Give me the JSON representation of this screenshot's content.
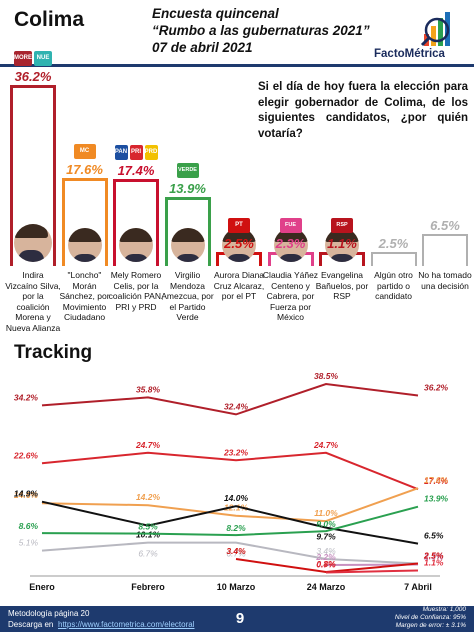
{
  "header": {
    "state": "Colima",
    "line1": "Encuesta quincenal",
    "line2": "“Rumbo a las gubernaturas 2021”",
    "line3": "07 de abril 2021",
    "brand": "FactoMétrica"
  },
  "question": "Si el día de hoy fuera la elección para elegir gobernador de Colima, de los siguientes candidatos, ¿por quién votaría?",
  "chart_data": [
    {
      "type": "bar",
      "categories": [
        "Indira Vizcaíno Silva, por la coalición Morena y Nueva Alianza",
        "\"Loncho\" Morán Sánchez, por Movimiento Ciudadano",
        "Mely Romero Celis, por la coalición PAN, PRI y PRD",
        "Virgilio Mendoza Amezcua, por el Partido Verde",
        "Aurora Diana Cruz Alcaraz, por el PT",
        "Claudia Yáñez Centeno y Cabrera, por Fuerza por México",
        "Evangelina Bañuelos, por RSP",
        "Algún otro partido o candidato",
        "No ha tomado una decisión"
      ],
      "values": [
        36.2,
        17.6,
        17.4,
        13.9,
        2.5,
        2.3,
        1.1,
        2.5,
        6.5
      ],
      "value_labels": [
        "36.2%",
        "17.6%",
        "17.4%",
        "13.9%",
        "2.5%",
        "2.3%",
        "1.1%",
        "2.5%",
        "6.5%"
      ],
      "colors": [
        "#b01f2a",
        "#f08a24",
        "#c8102e",
        "#3aa04a",
        "#d01010",
        "#e0408a",
        "#b8141e",
        "#b0b0b0",
        "#b0b0b0"
      ],
      "party_logos": [
        [
          "MORENA",
          "NUEVA ALIANZA"
        ],
        [
          "MC"
        ],
        [
          "PAN",
          "PRI",
          "PRD"
        ],
        [
          "VERDE"
        ],
        [
          "PT"
        ],
        [
          "FUERZA X MÉXICO"
        ],
        [
          "RSP"
        ],
        [],
        []
      ],
      "logo_colors": [
        [
          "#a8252f",
          "#2fb3b0"
        ],
        [
          "#f08a24"
        ],
        [
          "#1c4fa1",
          "#d8262e",
          "#f2c100"
        ],
        [
          "#3aa04a"
        ],
        [
          "#d01010"
        ],
        [
          "#e0408a"
        ],
        [
          "#b8141e"
        ],
        [],
        []
      ],
      "has_photo": [
        true,
        true,
        true,
        true,
        true,
        true,
        true,
        false,
        false
      ]
    },
    {
      "type": "line",
      "title": "Tracking",
      "x": [
        "Enero",
        "Febrero",
        "10 Marzo",
        "24 Marzo",
        "7 Abril"
      ],
      "ylim": [
        0,
        40
      ],
      "series": [
        {
          "color": "#b01f2a",
          "values": [
            34.2,
            35.8,
            32.4,
            38.5,
            36.2
          ],
          "labels": [
            "34.2%",
            "35.8%",
            "32.4%",
            "38.5%",
            "36.2%"
          ]
        },
        {
          "color": "#d8262e",
          "values": [
            22.6,
            24.7,
            23.2,
            24.7,
            17.4
          ],
          "labels": [
            "22.6%",
            "24.7%",
            "23.2%",
            "24.7%",
            "17.4%"
          ]
        },
        {
          "color": "#f0a050",
          "values": [
            14.6,
            14.2,
            12.1,
            11.0,
            17.6
          ],
          "labels": [
            "14.6%",
            "14.2%",
            "12.1%",
            "11.0%",
            "17.6%"
          ]
        },
        {
          "color": "#111111",
          "values": [
            14.9,
            10.1,
            14.0,
            9.7,
            6.5
          ],
          "labels": [
            "14.9%",
            "10.1%",
            "14.0%",
            "9.7%",
            "6.5%"
          ]
        },
        {
          "color": "#2aa050",
          "values": [
            8.6,
            8.5,
            8.2,
            9.0,
            13.9
          ],
          "labels": [
            "8.6%",
            "8.5%",
            "8.2%",
            "9.0%",
            "13.9%"
          ]
        },
        {
          "color": "#b8b8c0",
          "values": [
            5.1,
            6.7,
            6.7,
            3.4,
            2.5
          ],
          "labels": [
            "5.1%",
            "6.7%",
            "6.7%",
            "3.4%",
            "2.5%"
          ]
        },
        {
          "color": "#c890c0",
          "values": [
            null,
            null,
            null,
            2.2,
            2.3
          ],
          "labels": [
            "",
            "",
            "",
            "2.2%",
            "2.3%"
          ]
        },
        {
          "color": "#d01010",
          "values": [
            null,
            null,
            3.4,
            0.8,
            2.5
          ],
          "labels": [
            "",
            "",
            "3.4%",
            "0.8%",
            "2.5%"
          ]
        },
        {
          "color": "#e03040",
          "values": [
            null,
            null,
            null,
            0.7,
            1.1
          ],
          "labels": [
            "",
            "",
            "",
            "0.7%",
            "1.1%"
          ]
        }
      ]
    }
  ],
  "footer": {
    "method": "Metodología página 20",
    "download_prefix": "Descarga en",
    "download_link": "https://www.factometrica.com/electoral",
    "page": "9",
    "sample": "Muestra: 1,000",
    "confidence": "Nivel de Confianza: 95%",
    "margin": "Margen de error: ± 3.1%"
  }
}
